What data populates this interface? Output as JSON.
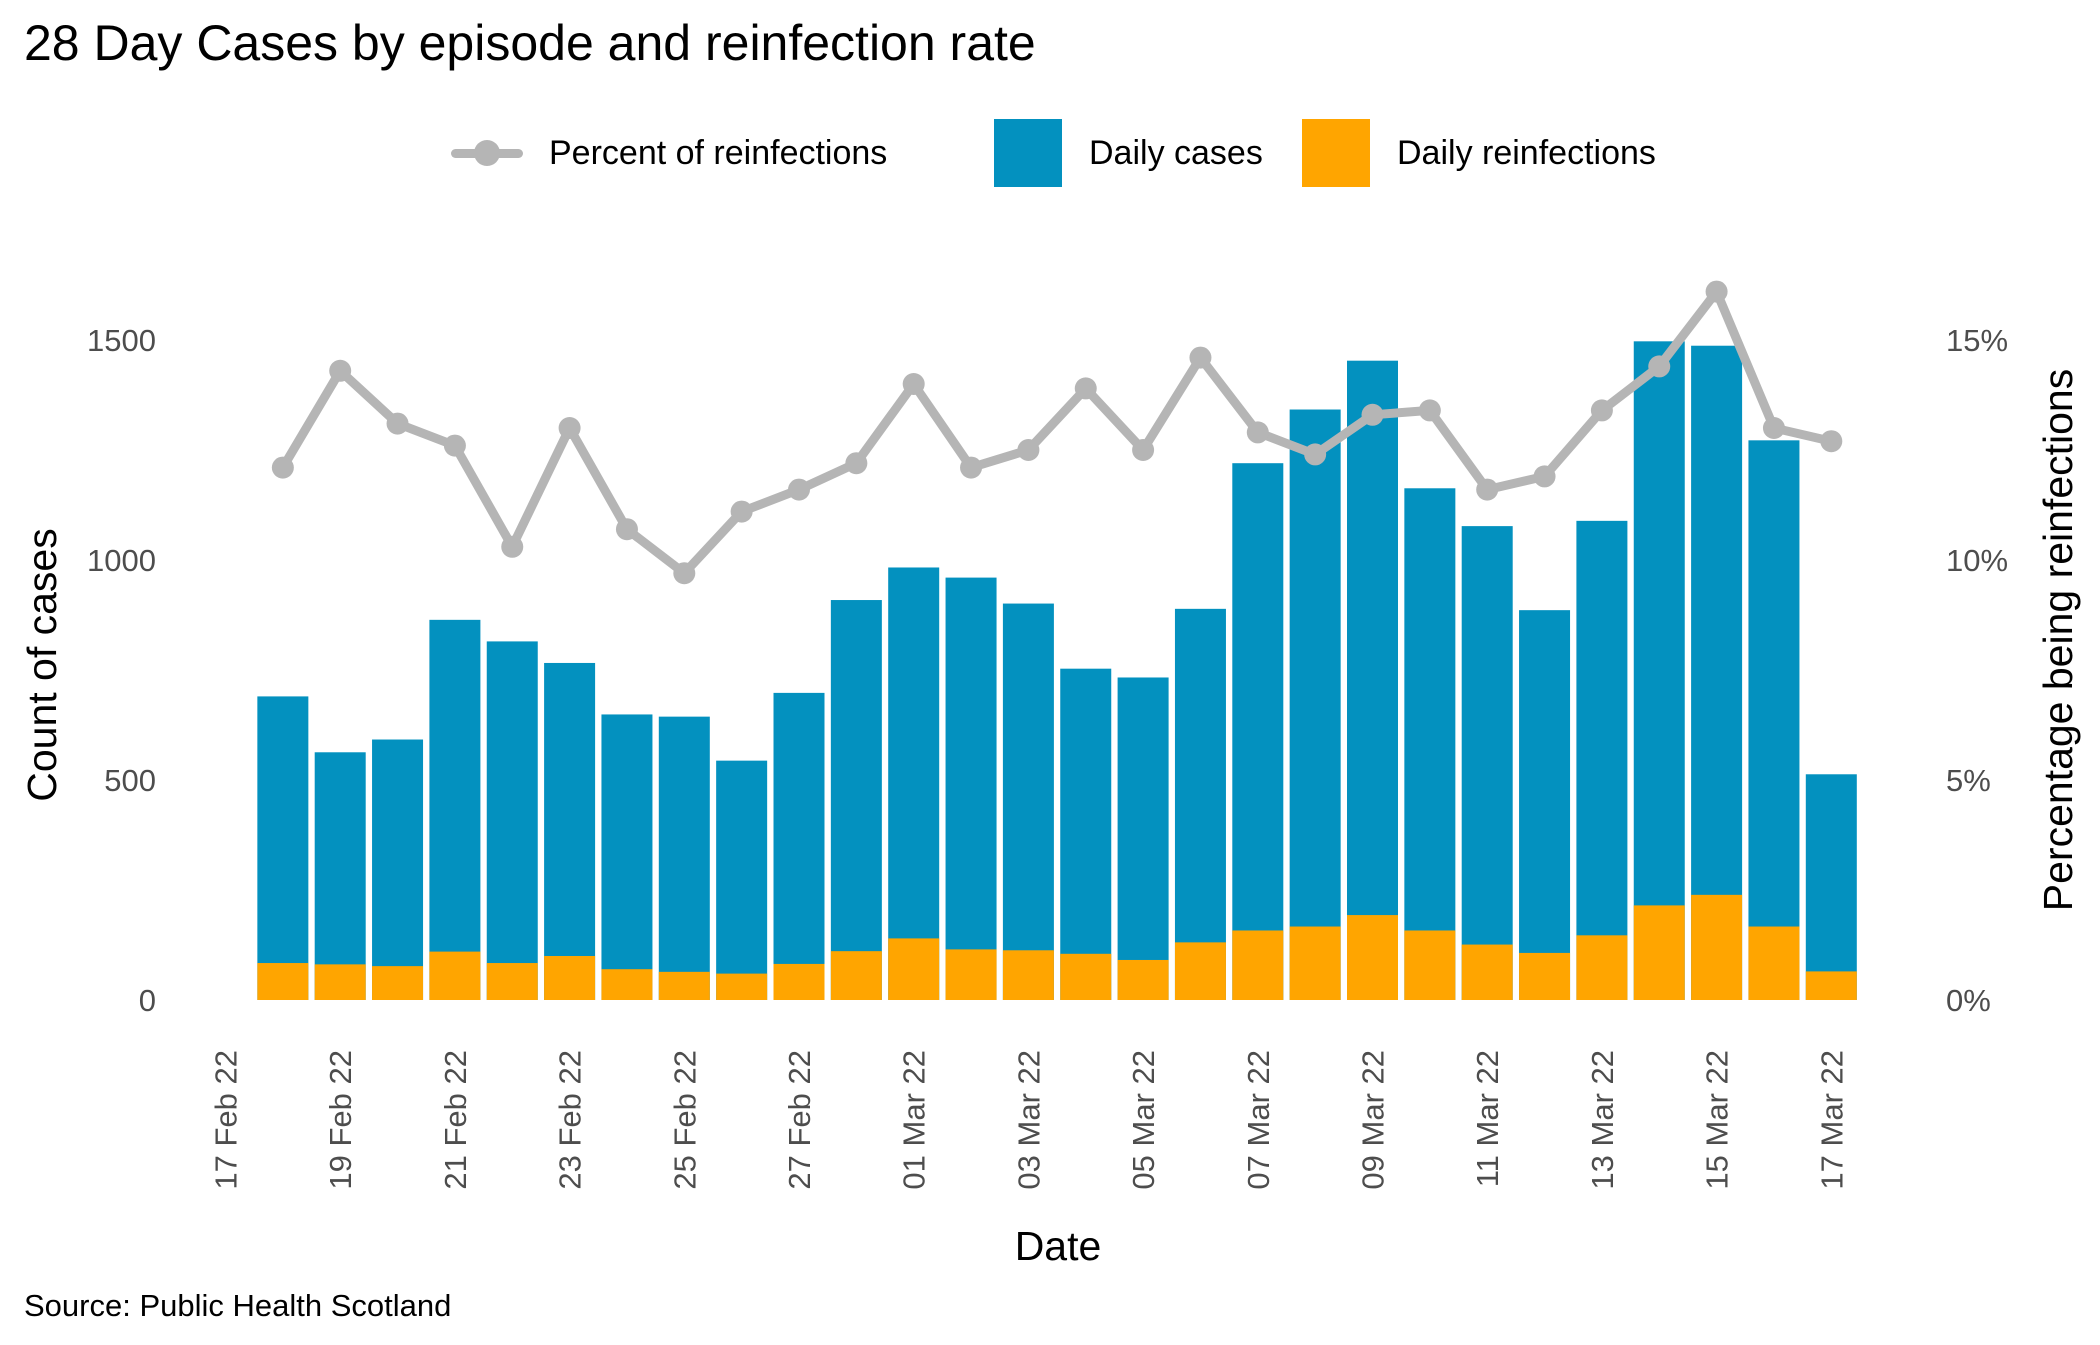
{
  "title": "28 Day Cases by episode and reinfection rate",
  "source": "Source: Public Health Scotland",
  "colors": {
    "daily_cases": "#0391bf",
    "daily_reinfections": "#ffa500",
    "percent_line": "#b5b5b5",
    "tick_text": "#4d4d4d"
  },
  "legend": {
    "percent": "Percent of reinfections",
    "cases": "Daily cases",
    "reinfections": "Daily reinfections"
  },
  "chart_data": {
    "type": "bar",
    "stacked_overlay": true,
    "xlabel": "Date",
    "ylabel": "Count of cases",
    "y2label": "Percentage being reinfections",
    "ylim": [
      0,
      1500
    ],
    "y2lim": [
      "0%",
      "15%"
    ],
    "y_ticks": [
      "0",
      "500",
      "1000",
      "1500"
    ],
    "y2_ticks": [
      "0%",
      "5%",
      "10%",
      "15%"
    ],
    "x_tick_labels": [
      "17 Feb 22",
      "19 Feb 22",
      "21 Feb 22",
      "23 Feb 22",
      "25 Feb 22",
      "27 Feb 22",
      "01 Mar 22",
      "03 Mar 22",
      "05 Mar 22",
      "07 Mar 22",
      "09 Mar 22",
      "11 Mar 22",
      "13 Mar 22",
      "15 Mar 22",
      "17 Mar 22"
    ],
    "grid": false,
    "legend_position": "top",
    "categories": [
      "18 Feb 22",
      "19 Feb 22",
      "20 Feb 22",
      "21 Feb 22",
      "22 Feb 22",
      "23 Feb 22",
      "24 Feb 22",
      "25 Feb 22",
      "26 Feb 22",
      "27 Feb 22",
      "28 Feb 22",
      "01 Mar 22",
      "02 Mar 22",
      "03 Mar 22",
      "04 Mar 22",
      "05 Mar 22",
      "06 Mar 22",
      "07 Mar 22",
      "08 Mar 22",
      "09 Mar 22",
      "10 Mar 22",
      "11 Mar 22",
      "12 Mar 22",
      "13 Mar 22",
      "14 Mar 22",
      "15 Mar 22",
      "16 Mar 22",
      "17 Mar 22"
    ],
    "series": [
      {
        "name": "Daily cases",
        "axis": "left",
        "values": [
          690,
          563,
          592,
          864,
          815,
          766,
          649,
          644,
          544,
          698,
          909,
          983,
          960,
          901,
          753,
          733,
          889,
          1220,
          1342,
          1453,
          1163,
          1077,
          886,
          1089,
          1497,
          1487,
          1272,
          513
        ]
      },
      {
        "name": "Daily reinfections",
        "axis": "left",
        "values": [
          84,
          81,
          77,
          110,
          84,
          100,
          70,
          64,
          60,
          82,
          111,
          140,
          115,
          113,
          105,
          91,
          131,
          158,
          167,
          193,
          158,
          126,
          107,
          147,
          215,
          239,
          167,
          65
        ]
      },
      {
        "name": "Percent of reinfections",
        "axis": "right",
        "unit": "%",
        "values": [
          12.1,
          14.3,
          13.1,
          12.6,
          10.3,
          13.0,
          10.7,
          9.7,
          11.1,
          11.6,
          12.2,
          14.0,
          12.1,
          12.5,
          13.9,
          12.5,
          14.6,
          12.9,
          12.4,
          13.3,
          13.4,
          11.6,
          11.9,
          13.4,
          14.4,
          16.1,
          13.0,
          12.7
        ]
      }
    ]
  }
}
